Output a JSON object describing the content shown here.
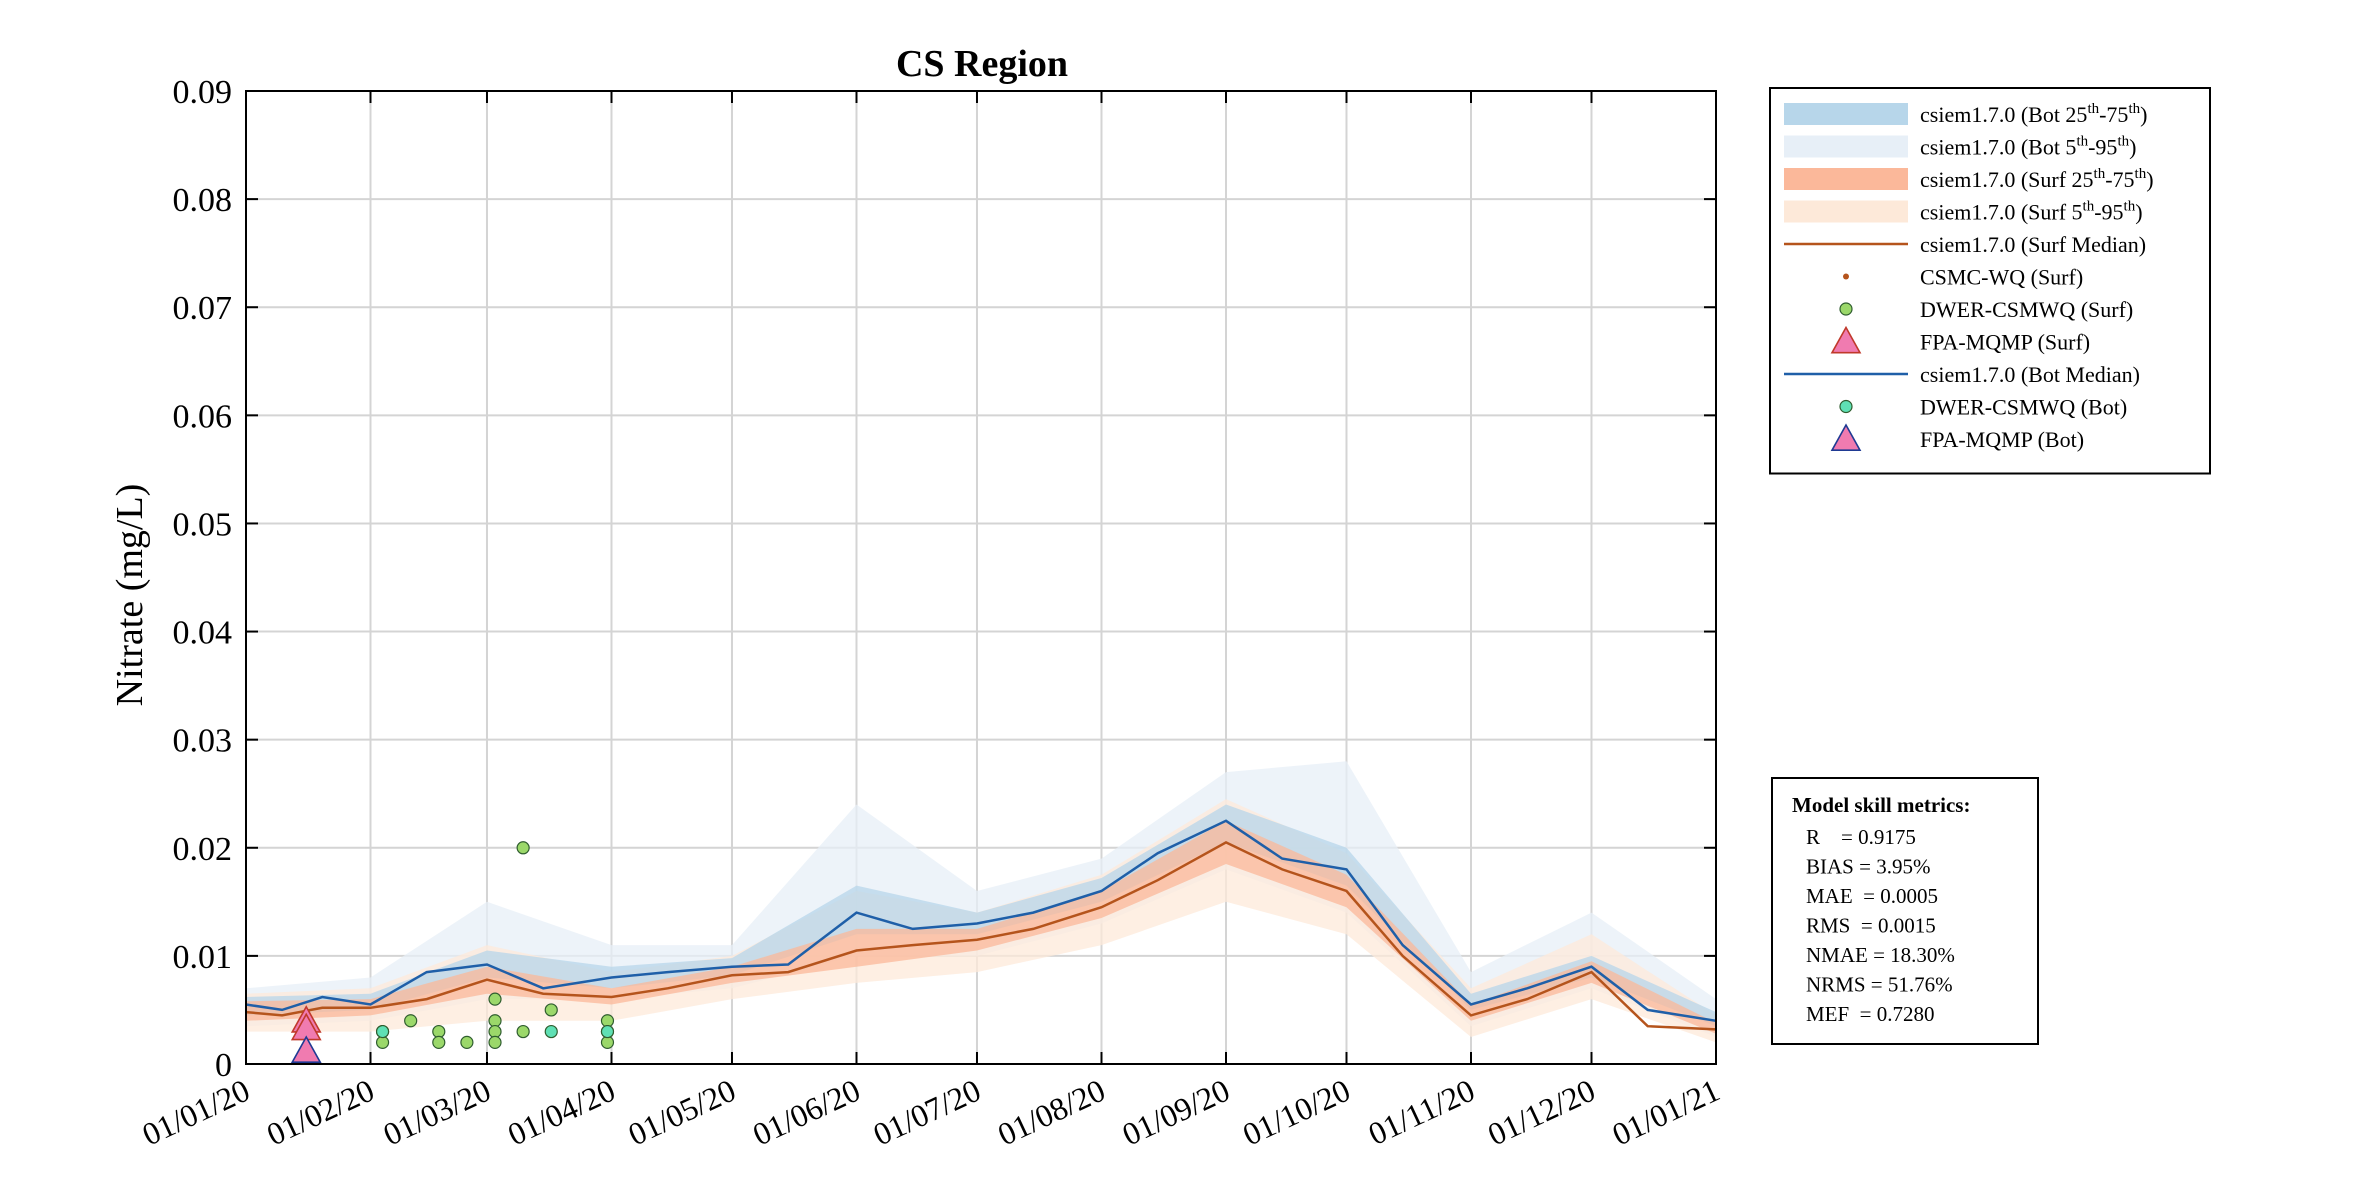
{
  "chart_data": {
    "type": "line",
    "title": "CS Region",
    "xlabel": "",
    "ylabel": "Nitrate (mg/L)",
    "ylim": [
      0,
      0.09
    ],
    "yticks": [
      0,
      0.01,
      0.02,
      0.03,
      0.04,
      0.05,
      0.06,
      0.07,
      0.08,
      0.09
    ],
    "ytick_labels": [
      "0",
      "0.01",
      "0.02",
      "0.03",
      "0.04",
      "0.05",
      "0.06",
      "0.07",
      "0.08",
      "0.09"
    ],
    "xlim": [
      "2020-01-01",
      "2021-01-01"
    ],
    "xticks": [
      "2020-01-01",
      "2020-02-01",
      "2020-03-01",
      "2020-04-01",
      "2020-05-01",
      "2020-06-01",
      "2020-07-01",
      "2020-08-01",
      "2020-09-01",
      "2020-10-01",
      "2020-11-01",
      "2020-12-01",
      "2021-01-01"
    ],
    "xtick_labels": [
      "01/01/20",
      "01/02/20",
      "01/03/20",
      "01/04/20",
      "01/05/20",
      "01/06/20",
      "01/07/20",
      "01/08/20",
      "01/09/20",
      "01/10/20",
      "01/11/20",
      "01/12/20",
      "01/01/21"
    ],
    "grid": true,
    "legend_position": "outside top-right",
    "series": [
      {
        "name": "csiem1.7.0 (Surf Median)",
        "kind": "line",
        "color": "#b5541c",
        "x": [
          "2020-01-01",
          "2020-01-10",
          "2020-01-20",
          "2020-02-01",
          "2020-02-15",
          "2020-03-01",
          "2020-03-15",
          "2020-04-01",
          "2020-04-15",
          "2020-05-01",
          "2020-05-15",
          "2020-06-01",
          "2020-06-15",
          "2020-07-01",
          "2020-07-15",
          "2020-08-01",
          "2020-08-15",
          "2020-09-01",
          "2020-09-15",
          "2020-10-01",
          "2020-10-15",
          "2020-11-01",
          "2020-11-15",
          "2020-12-01",
          "2020-12-15",
          "2021-01-01"
        ],
        "y": [
          0.0048,
          0.0045,
          0.0052,
          0.0052,
          0.006,
          0.0078,
          0.0065,
          0.0062,
          0.007,
          0.0082,
          0.0085,
          0.0105,
          0.011,
          0.0115,
          0.0125,
          0.0145,
          0.017,
          0.0205,
          0.018,
          0.016,
          0.01,
          0.0045,
          0.006,
          0.0085,
          0.0035,
          0.0032
        ]
      },
      {
        "name": "csiem1.7.0 (Bot Median)",
        "kind": "line",
        "color": "#1f5fa8",
        "x": [
          "2020-01-01",
          "2020-01-10",
          "2020-01-20",
          "2020-02-01",
          "2020-02-15",
          "2020-03-01",
          "2020-03-15",
          "2020-04-01",
          "2020-04-15",
          "2020-05-01",
          "2020-05-15",
          "2020-06-01",
          "2020-06-15",
          "2020-07-01",
          "2020-07-15",
          "2020-08-01",
          "2020-08-15",
          "2020-09-01",
          "2020-09-15",
          "2020-10-01",
          "2020-10-15",
          "2020-11-01",
          "2020-11-15",
          "2020-12-01",
          "2020-12-15",
          "2021-01-01"
        ],
        "y": [
          0.0055,
          0.005,
          0.0062,
          0.0055,
          0.0085,
          0.0092,
          0.007,
          0.008,
          0.0085,
          0.009,
          0.0092,
          0.014,
          0.0125,
          0.013,
          0.014,
          0.016,
          0.0195,
          0.0225,
          0.019,
          0.018,
          0.011,
          0.0055,
          0.007,
          0.009,
          0.005,
          0.004
        ]
      },
      {
        "name": "csiem1.7.0 (Surf 25th-75th)",
        "kind": "band",
        "color": "#fbb89a",
        "x": [
          "2020-01-01",
          "2020-02-01",
          "2020-03-01",
          "2020-04-01",
          "2020-05-01",
          "2020-06-01",
          "2020-07-01",
          "2020-08-01",
          "2020-09-01",
          "2020-10-01",
          "2020-11-01",
          "2020-12-01",
          "2021-01-01"
        ],
        "low": [
          0.004,
          0.0045,
          0.0065,
          0.0055,
          0.0075,
          0.009,
          0.0105,
          0.0135,
          0.0185,
          0.0145,
          0.004,
          0.0075,
          0.0028
        ],
        "high": [
          0.0058,
          0.006,
          0.009,
          0.007,
          0.009,
          0.0125,
          0.0125,
          0.016,
          0.0225,
          0.0175,
          0.0055,
          0.0095,
          0.0038
        ]
      },
      {
        "name": "csiem1.7.0 (Surf 5th-95th)",
        "kind": "band",
        "color": "#fde9d9",
        "x": [
          "2020-01-01",
          "2020-02-01",
          "2020-03-01",
          "2020-04-01",
          "2020-05-01",
          "2020-06-01",
          "2020-07-01",
          "2020-08-01",
          "2020-09-01",
          "2020-10-01",
          "2020-11-01",
          "2020-12-01",
          "2021-01-01"
        ],
        "low": [
          0.003,
          0.003,
          0.004,
          0.004,
          0.006,
          0.0075,
          0.0085,
          0.011,
          0.015,
          0.012,
          0.0025,
          0.006,
          0.002
        ],
        "high": [
          0.0065,
          0.007,
          0.011,
          0.0085,
          0.01,
          0.016,
          0.014,
          0.0175,
          0.0245,
          0.0195,
          0.007,
          0.012,
          0.0045
        ]
      },
      {
        "name": "csiem1.7.0 (Bot 25th-75th)",
        "kind": "band",
        "color": "#b7d6ea",
        "x": [
          "2020-01-01",
          "2020-02-01",
          "2020-03-01",
          "2020-04-01",
          "2020-05-01",
          "2020-06-01",
          "2020-07-01",
          "2020-08-01",
          "2020-09-01",
          "2020-10-01",
          "2020-11-01",
          "2020-12-01",
          "2021-01-01"
        ],
        "low": [
          0.0045,
          0.005,
          0.008,
          0.007,
          0.0082,
          0.012,
          0.012,
          0.015,
          0.0205,
          0.0165,
          0.005,
          0.008,
          0.0035
        ],
        "high": [
          0.0062,
          0.0065,
          0.0105,
          0.009,
          0.0098,
          0.0165,
          0.014,
          0.0172,
          0.024,
          0.02,
          0.0065,
          0.01,
          0.0048
        ]
      },
      {
        "name": "csiem1.7.0 (Bot 5th-95th)",
        "kind": "band",
        "color": "#e7eff7",
        "x": [
          "2020-01-01",
          "2020-02-01",
          "2020-03-01",
          "2020-04-01",
          "2020-05-01",
          "2020-06-01",
          "2020-07-01",
          "2020-08-01",
          "2020-09-01",
          "2020-10-01",
          "2020-11-01",
          "2020-12-01",
          "2021-01-01"
        ],
        "low": [
          0.0035,
          0.004,
          0.006,
          0.006,
          0.007,
          0.01,
          0.01,
          0.013,
          0.018,
          0.014,
          0.0035,
          0.007,
          0.0025
        ],
        "high": [
          0.007,
          0.008,
          0.015,
          0.011,
          0.011,
          0.024,
          0.016,
          0.019,
          0.027,
          0.028,
          0.0085,
          0.014,
          0.006
        ]
      },
      {
        "name": "DWER-CSMWQ (Surf)",
        "kind": "points",
        "marker": "circle",
        "color": "#9bd86a",
        "x": [
          "2020-02-04",
          "2020-02-04",
          "2020-02-11",
          "2020-02-18",
          "2020-02-18",
          "2020-02-25",
          "2020-03-03",
          "2020-03-03",
          "2020-03-03",
          "2020-03-03",
          "2020-03-10",
          "2020-03-10",
          "2020-03-17",
          "2020-03-31",
          "2020-03-31",
          "2020-03-31"
        ],
        "y": [
          0.003,
          0.002,
          0.004,
          0.003,
          0.002,
          0.002,
          0.006,
          0.004,
          0.003,
          0.002,
          0.02,
          0.003,
          0.005,
          0.004,
          0.003,
          0.002
        ]
      },
      {
        "name": "FPA-MQMP (Surf)",
        "kind": "points",
        "marker": "triangle",
        "color": "#f07bb0",
        "x": [
          "2020-01-16",
          "2020-01-16"
        ],
        "y": [
          0.004,
          0.0033
        ]
      },
      {
        "name": "DWER-CSMWQ (Bot)",
        "kind": "points",
        "marker": "circle",
        "color": "#5fe0b4",
        "x": [
          "2020-02-04",
          "2020-03-17",
          "2020-03-31"
        ],
        "y": [
          0.003,
          0.003,
          0.003
        ]
      },
      {
        "name": "FPA-MQMP (Bot)",
        "kind": "points",
        "marker": "triangle",
        "color": "#f07bb0",
        "x": [
          "2020-01-16"
        ],
        "y": [
          0.0012
        ]
      }
    ]
  },
  "legend": {
    "items": [
      {
        "kind": "patch",
        "color": "#b7d6ea",
        "base": "csiem1.7.0 (Bot 25",
        "sup1": "th",
        "mid": "-75",
        "sup2": "th",
        "end": ")"
      },
      {
        "kind": "patch",
        "color": "#e7eff7",
        "base": "csiem1.7.0 (Bot 5",
        "sup1": "th",
        "mid": "-95",
        "sup2": "th",
        "end": ")"
      },
      {
        "kind": "patch",
        "color": "#fbb89a",
        "base": "csiem1.7.0 (Surf 25",
        "sup1": "th",
        "mid": "-75",
        "sup2": "th",
        "end": ")"
      },
      {
        "kind": "patch",
        "color": "#fde9d9",
        "base": "csiem1.7.0 (Surf 5",
        "sup1": "th",
        "mid": "-95",
        "sup2": "th",
        "end": ")"
      },
      {
        "kind": "line",
        "color": "#b5541c",
        "base": "csiem1.7.0 (Surf Median)"
      },
      {
        "kind": "dot",
        "color": "#b5541c",
        "base": "CSMC-WQ (Surf)"
      },
      {
        "kind": "circle",
        "color": "#9bd86a",
        "base": "DWER-CSMWQ (Surf)"
      },
      {
        "kind": "triangle",
        "color": "#f07bb0",
        "stroke": "#c0392b",
        "base": "FPA-MQMP (Surf)"
      },
      {
        "kind": "line",
        "color": "#1f5fa8",
        "base": "csiem1.7.0 (Bot Median)"
      },
      {
        "kind": "circle",
        "color": "#5fe0b4",
        "base": "DWER-CSMWQ (Bot)"
      },
      {
        "kind": "triangle",
        "color": "#f07bb0",
        "stroke": "#1f3a93",
        "base": "FPA-MQMP (Bot)"
      }
    ]
  },
  "metrics": {
    "title": "Model skill metrics:",
    "lines": [
      "R    = 0.9175",
      "BIAS = 3.95%",
      "MAE  = 0.0005",
      "RMS  = 0.0015",
      "NMAE = 18.30%",
      "NRMS = 51.76%",
      "MEF  = 0.7280"
    ]
  }
}
